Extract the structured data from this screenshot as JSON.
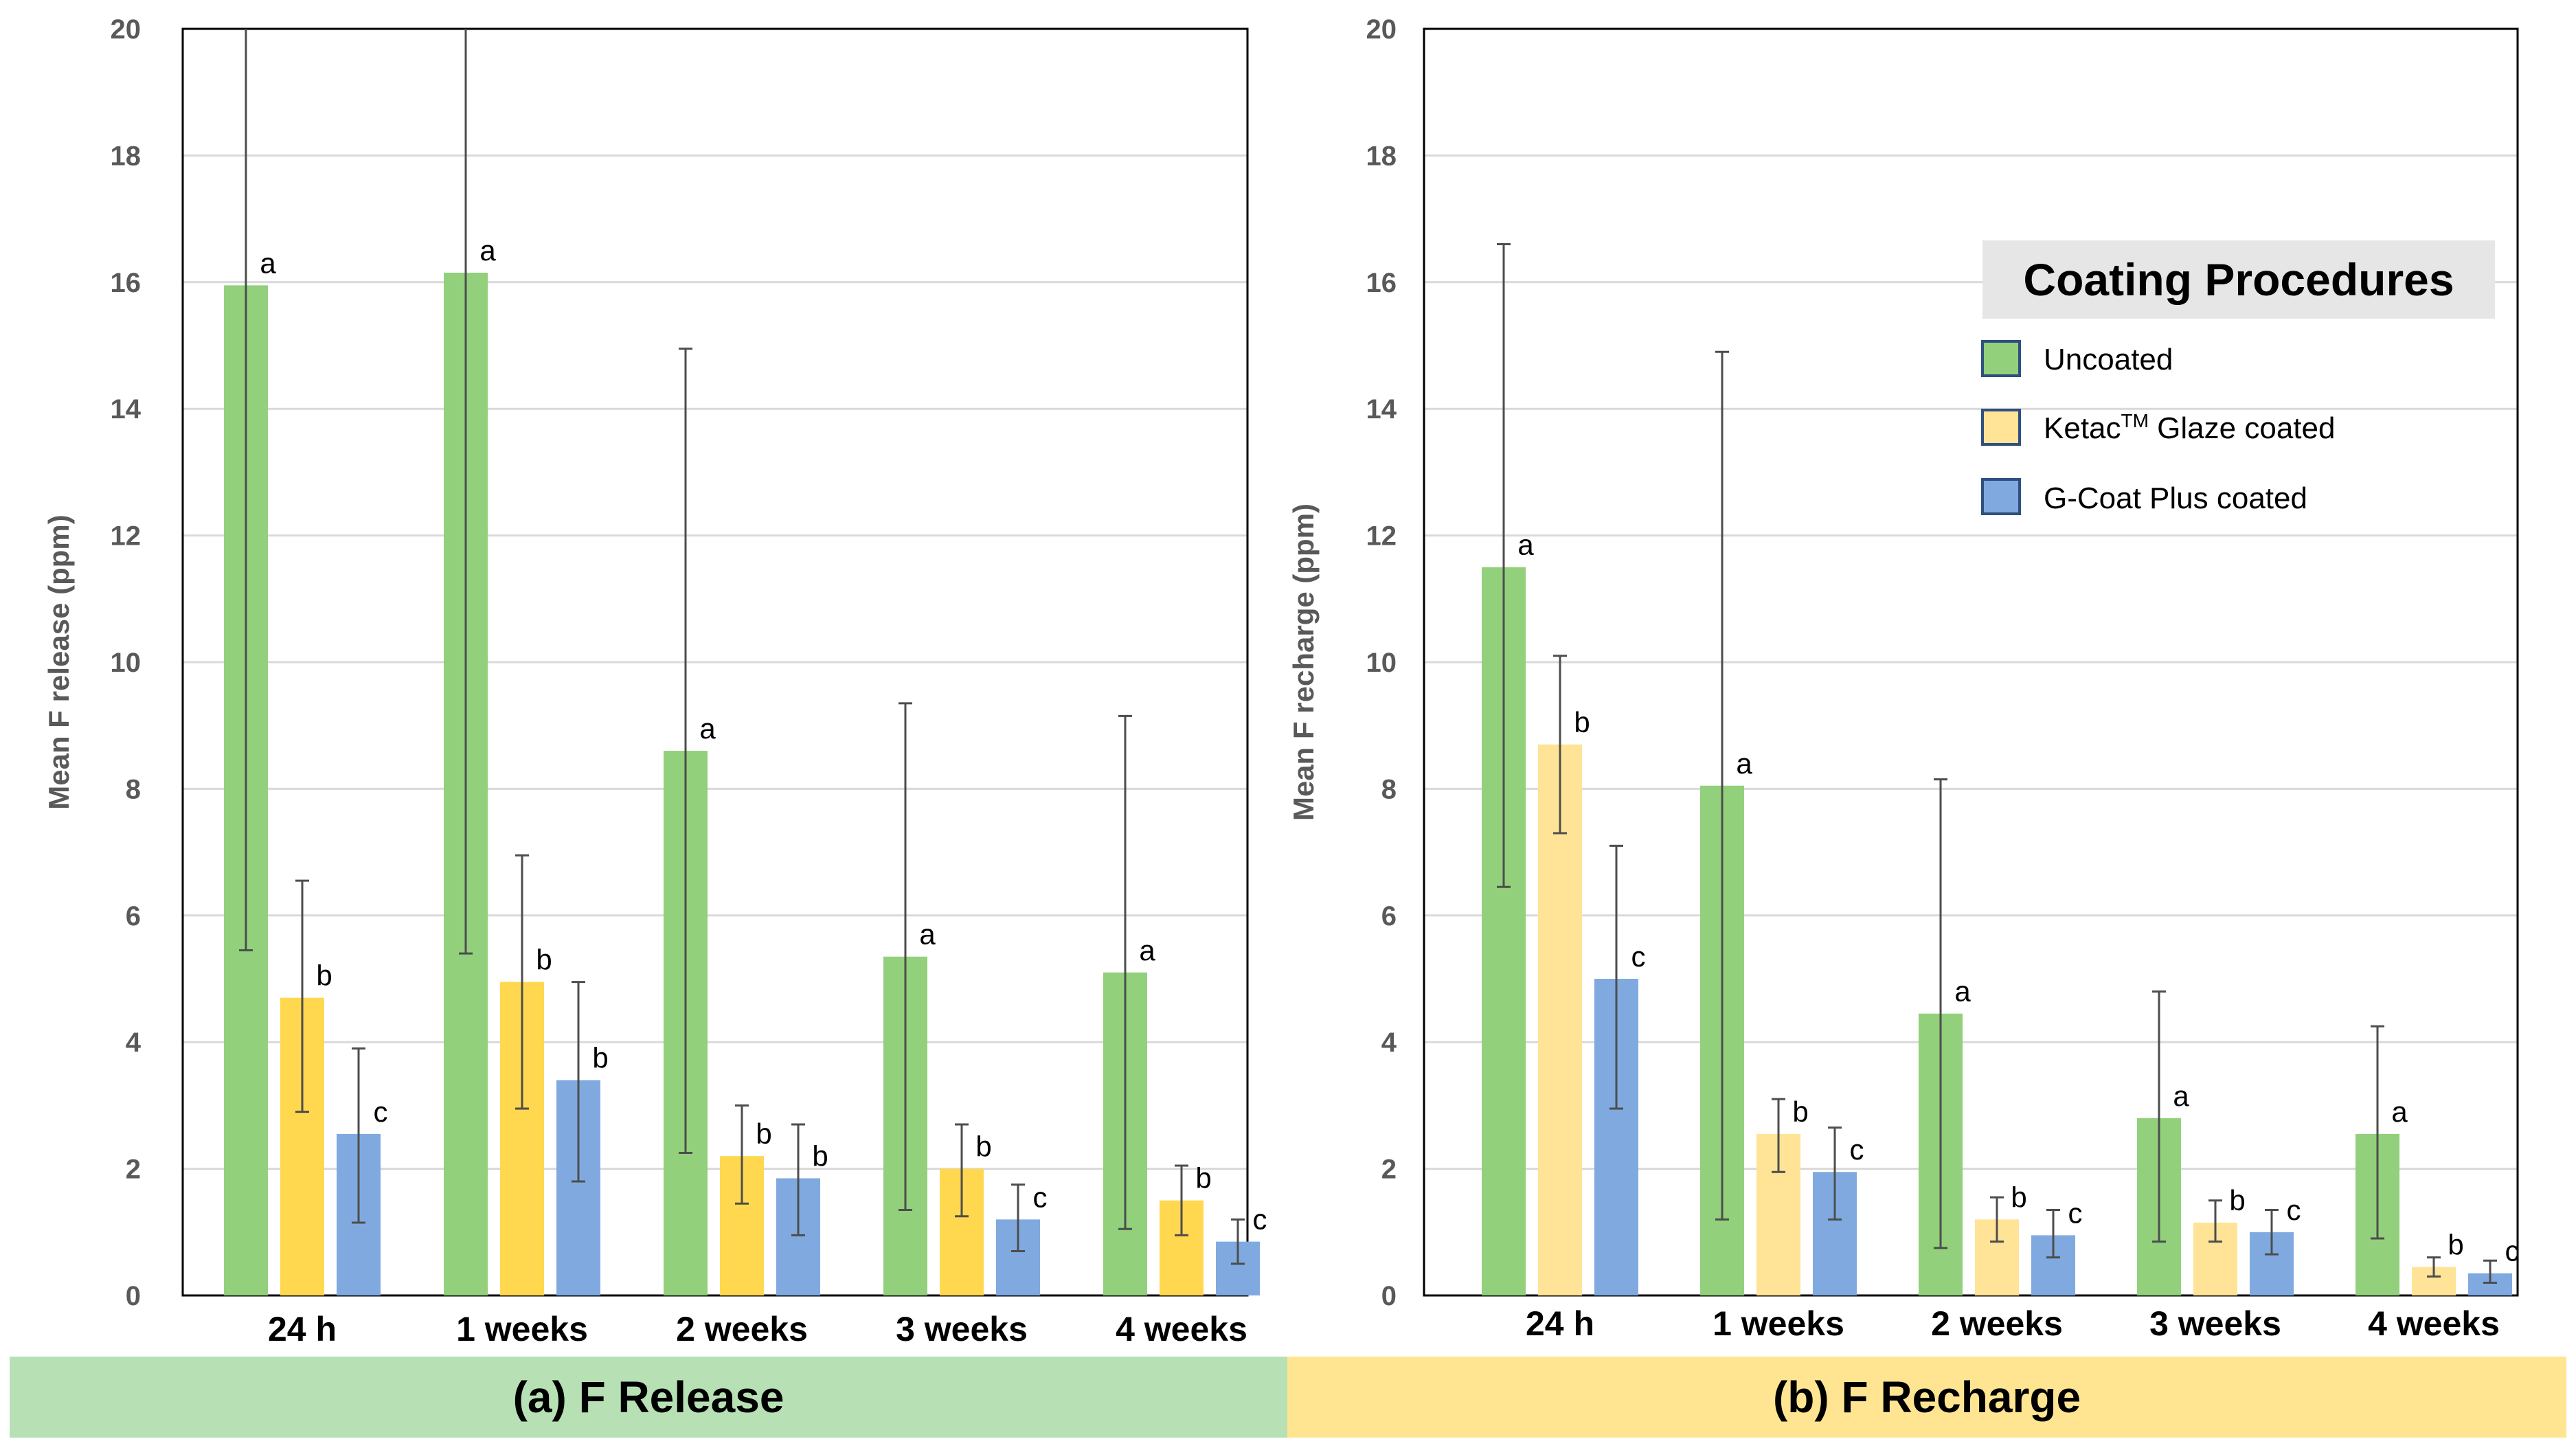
{
  "colors": {
    "uncoated_a": "#92D07C",
    "ketac_a": "#FFD84F",
    "gcoat": "#80AADF",
    "uncoated_b": "#92D07C",
    "ketac_b": "#FFE396",
    "band_a": "#B7E1B4",
    "band_b": "#FFE591",
    "legend_bg": "#E7E6E6",
    "grid": "#D9D9D9"
  },
  "legend": {
    "title": "Coating Procedures",
    "items": [
      {
        "key": "uncoated",
        "label": "Uncoated"
      },
      {
        "key": "ketac",
        "label_main": "Ketac",
        "label_sup": "TM",
        "label_rest": " Glaze coated"
      },
      {
        "key": "gcoat",
        "label": "G-Coat Plus coated"
      }
    ]
  },
  "chart_data": [
    {
      "type": "bar",
      "panel_title": "(a) F Release",
      "ylabel": "Mean F release (ppm)",
      "ylim": [
        0,
        20
      ],
      "yticks": [
        0,
        2,
        4,
        6,
        8,
        10,
        12,
        14,
        16,
        18,
        20
      ],
      "grid": true,
      "categories": [
        "24 h",
        "1 weeks",
        "2 weeks",
        "3 weeks",
        "4 weeks"
      ],
      "series": [
        {
          "name": "Uncoated",
          "values": [
            15.95,
            16.15,
            8.6,
            5.35,
            5.1
          ],
          "err_low": [
            5.45,
            5.4,
            2.25,
            1.35,
            1.05
          ],
          "err_high": [
            20,
            20,
            14.95,
            9.35,
            9.15
          ],
          "labels": [
            "a",
            "a",
            "a",
            "a",
            "a"
          ]
        },
        {
          "name": "Ketac Glaze coated",
          "values": [
            4.7,
            4.95,
            2.2,
            2.0,
            1.5
          ],
          "err_low": [
            2.9,
            2.95,
            1.45,
            1.25,
            0.95
          ],
          "err_high": [
            6.55,
            6.95,
            3.0,
            2.7,
            2.05
          ],
          "labels": [
            "b",
            "b",
            "b",
            "b",
            "b"
          ]
        },
        {
          "name": "G-Coat Plus coated",
          "values": [
            2.55,
            3.4,
            1.85,
            1.2,
            0.85
          ],
          "err_low": [
            1.15,
            1.8,
            0.95,
            0.7,
            0.5
          ],
          "err_high": [
            3.9,
            4.95,
            2.7,
            1.75,
            1.2
          ],
          "labels": [
            "c",
            "b",
            "b",
            "c",
            "c"
          ]
        }
      ]
    },
    {
      "type": "bar",
      "panel_title": "(b) F Recharge",
      "ylabel": "Mean F recharge (ppm)",
      "ylim": [
        0,
        20
      ],
      "yticks": [
        0,
        2,
        4,
        6,
        8,
        10,
        12,
        14,
        16,
        18,
        20
      ],
      "grid": true,
      "categories": [
        "24 h",
        "1 weeks",
        "2 weeks",
        "3 weeks",
        "4 weeks"
      ],
      "series": [
        {
          "name": "Uncoated",
          "values": [
            11.5,
            8.05,
            4.45,
            2.8,
            2.55
          ],
          "err_low": [
            6.45,
            1.2,
            0.75,
            0.85,
            0.9
          ],
          "err_high": [
            16.6,
            14.9,
            8.15,
            4.8,
            4.25
          ],
          "labels": [
            "a",
            "a",
            "a",
            "a",
            "a"
          ]
        },
        {
          "name": "Ketac Glaze coated",
          "values": [
            8.7,
            2.55,
            1.2,
            1.15,
            0.45
          ],
          "err_low": [
            7.3,
            1.95,
            0.85,
            0.85,
            0.3
          ],
          "err_high": [
            10.1,
            3.1,
            1.55,
            1.5,
            0.6
          ],
          "labels": [
            "b",
            "b",
            "b",
            "b",
            "b"
          ]
        },
        {
          "name": "G-Coat Plus coated",
          "values": [
            5.0,
            1.95,
            0.95,
            1.0,
            0.35
          ],
          "err_low": [
            2.95,
            1.2,
            0.6,
            0.65,
            0.2
          ],
          "err_high": [
            7.1,
            2.65,
            1.35,
            1.35,
            0.55
          ],
          "labels": [
            "c",
            "c",
            "c",
            "c",
            "c"
          ]
        }
      ]
    }
  ]
}
